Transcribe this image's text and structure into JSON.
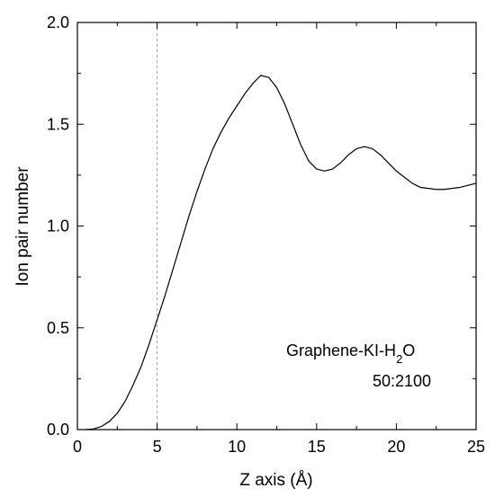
{
  "chart_data": {
    "type": "line",
    "xlabel": "Z axis (Å)",
    "ylabel": "Ion pair number",
    "xlim": [
      0,
      25
    ],
    "ylim": [
      0,
      2.0
    ],
    "x_ticks": [
      "0",
      "5",
      "10",
      "15",
      "20",
      "25"
    ],
    "y_ticks": [
      "0.0",
      "0.5",
      "1.0",
      "1.5",
      "2.0"
    ],
    "grid": false,
    "reference_line": {
      "x": 5,
      "style": "dashed",
      "color": "#999999"
    },
    "annotation": {
      "line1": "Graphene-KI-H",
      "line1_sub": "2",
      "line1_tail": "O",
      "line2": "50:2100"
    },
    "series": [
      {
        "color": "#000000",
        "points": [
          [
            0.5,
            0.0
          ],
          [
            1.0,
            0.003
          ],
          [
            1.5,
            0.015
          ],
          [
            2.0,
            0.04
          ],
          [
            2.5,
            0.08
          ],
          [
            3.0,
            0.14
          ],
          [
            3.5,
            0.22
          ],
          [
            4.0,
            0.31
          ],
          [
            4.5,
            0.42
          ],
          [
            5.0,
            0.54
          ],
          [
            5.5,
            0.66
          ],
          [
            6.0,
            0.79
          ],
          [
            6.5,
            0.92
          ],
          [
            7.0,
            1.05
          ],
          [
            7.5,
            1.17
          ],
          [
            8.0,
            1.28
          ],
          [
            8.5,
            1.38
          ],
          [
            9.0,
            1.46
          ],
          [
            9.5,
            1.53
          ],
          [
            10.0,
            1.59
          ],
          [
            10.5,
            1.65
          ],
          [
            11.0,
            1.7
          ],
          [
            11.5,
            1.74
          ],
          [
            12.0,
            1.73
          ],
          [
            12.5,
            1.68
          ],
          [
            13.0,
            1.6
          ],
          [
            13.5,
            1.5
          ],
          [
            14.0,
            1.4
          ],
          [
            14.5,
            1.32
          ],
          [
            15.0,
            1.28
          ],
          [
            15.5,
            1.27
          ],
          [
            16.0,
            1.28
          ],
          [
            16.5,
            1.31
          ],
          [
            17.0,
            1.35
          ],
          [
            17.5,
            1.38
          ],
          [
            18.0,
            1.39
          ],
          [
            18.5,
            1.38
          ],
          [
            19.0,
            1.35
          ],
          [
            19.5,
            1.31
          ],
          [
            20.0,
            1.27
          ],
          [
            20.5,
            1.24
          ],
          [
            21.0,
            1.21
          ],
          [
            21.5,
            1.19
          ],
          [
            22.0,
            1.185
          ],
          [
            22.5,
            1.18
          ],
          [
            23.0,
            1.18
          ],
          [
            23.5,
            1.185
          ],
          [
            24.0,
            1.19
          ],
          [
            24.5,
            1.2
          ],
          [
            25.0,
            1.21
          ]
        ]
      }
    ]
  }
}
